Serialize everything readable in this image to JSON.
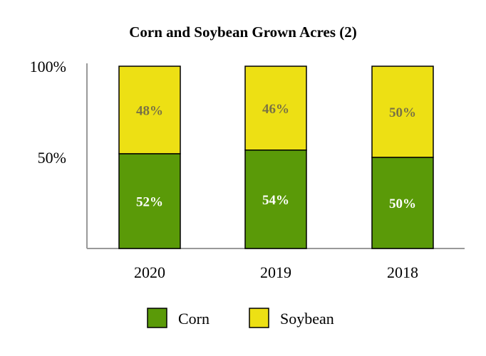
{
  "chart_data": {
    "type": "bar",
    "stacked": true,
    "title": "Corn and Soybean Grown Acres (2)",
    "categories": [
      "2020",
      "2019",
      "2018"
    ],
    "series": [
      {
        "name": "Corn",
        "values": [
          52,
          54,
          50
        ],
        "labels": [
          "52%",
          "54%",
          "50%"
        ]
      },
      {
        "name": "Soybean",
        "values": [
          48,
          46,
          50
        ],
        "labels": [
          "48%",
          "46%",
          "50%"
        ]
      }
    ],
    "ylim": [
      0,
      100
    ],
    "yticks": [
      {
        "value": 100,
        "label": "100%"
      },
      {
        "value": 50,
        "label": "50%"
      }
    ],
    "xlabel": "",
    "ylabel": "",
    "legend_position": "bottom"
  },
  "colors": {
    "Corn": "#5a9a08",
    "Soybean": "#ede014",
    "corn_label": "#ffffff",
    "soybean_label": "#7a7344",
    "axis": "#999999"
  }
}
